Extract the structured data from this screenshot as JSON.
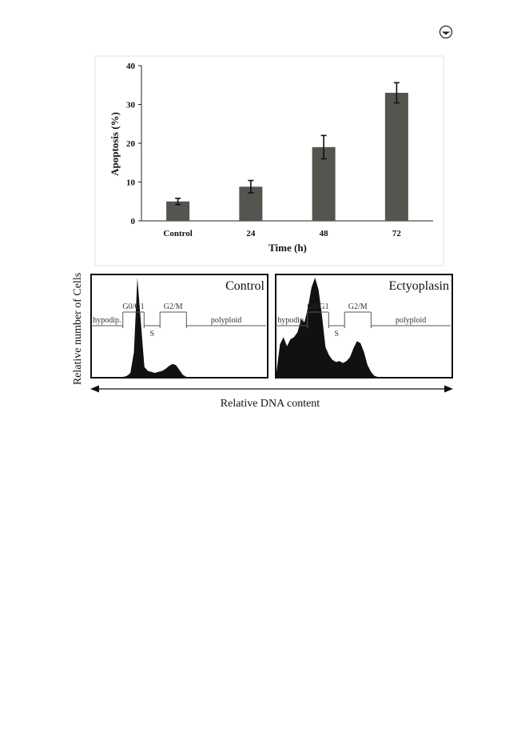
{
  "corner_icon": "circled-arrow-icon",
  "chart_data": [
    {
      "type": "bar",
      "title": "",
      "xlabel": "Time (h)",
      "ylabel": "Apoptosis (%)",
      "categories": [
        "Control",
        "24",
        "48",
        "72"
      ],
      "values": [
        5,
        8.8,
        19,
        33
      ],
      "errors": [
        0.8,
        1.6,
        3.0,
        2.6
      ],
      "ylim": [
        0,
        40
      ],
      "yticks": [
        "0",
        "10",
        "20",
        "30",
        "40"
      ],
      "bar_color": "#55544f",
      "grid": false
    },
    {
      "type": "area",
      "ylabel": "Relative number of Cells",
      "xlabel": "Relative DNA content",
      "fill_color": "#111111",
      "panels": [
        {
          "label": "Control",
          "regions": [
            "hypodip.",
            "G0/G1",
            "S",
            "G2/M",
            "polyploid"
          ],
          "x": [
            0,
            2,
            4,
            6,
            8,
            10,
            12,
            14,
            16,
            18,
            20,
            22,
            24,
            26,
            28,
            30,
            32,
            34,
            36,
            38,
            40,
            42,
            44,
            46,
            48,
            50,
            52,
            54,
            56,
            58,
            60,
            62,
            64,
            66,
            68,
            70,
            72,
            74,
            76,
            78,
            80,
            82,
            84,
            86,
            88,
            90,
            92,
            94,
            96,
            98,
            100
          ],
          "y": [
            0,
            0,
            0,
            0,
            0,
            0,
            0,
            0,
            0,
            0,
            1,
            4,
            25,
            100,
            55,
            10,
            6,
            5,
            4,
            5,
            6,
            8,
            11,
            13,
            12,
            7,
            2,
            0,
            0,
            0,
            0,
            0,
            0,
            0,
            0,
            0,
            0,
            0,
            0,
            0,
            0,
            0,
            0,
            0,
            0,
            0,
            0,
            0,
            0,
            0,
            0
          ]
        },
        {
          "label": "Ectyoplasin",
          "regions": [
            "hypodip.",
            "G0/G1",
            "S",
            "G2/M",
            "polyploid"
          ],
          "x": [
            0,
            2,
            4,
            6,
            8,
            10,
            12,
            14,
            16,
            18,
            20,
            22,
            24,
            26,
            28,
            30,
            32,
            34,
            36,
            38,
            40,
            42,
            44,
            46,
            48,
            50,
            52,
            54,
            56,
            58,
            60,
            62,
            64,
            66,
            68,
            70,
            72,
            74,
            76,
            78,
            80,
            82,
            84,
            86,
            88,
            90,
            92,
            94,
            96,
            98,
            100
          ],
          "y": [
            5,
            33,
            40,
            31,
            38,
            40,
            45,
            58,
            55,
            70,
            90,
            100,
            88,
            62,
            30,
            22,
            17,
            15,
            16,
            14,
            16,
            20,
            29,
            36,
            34,
            25,
            12,
            5,
            1,
            0,
            0,
            0,
            0,
            0,
            0,
            0,
            0,
            0,
            0,
            0,
            0,
            0,
            0,
            0,
            0,
            0,
            0,
            0,
            0,
            0,
            0
          ]
        }
      ]
    }
  ]
}
